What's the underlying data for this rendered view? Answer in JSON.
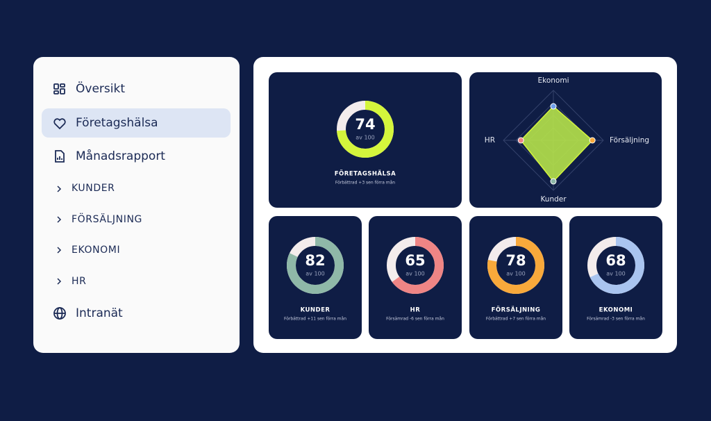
{
  "sidebar": {
    "items": [
      "Översikt",
      "Företagshälsa",
      "Månadsrapport",
      "KUNDER",
      "FÖRSÄLJNING",
      "EKONOMI",
      "HR",
      "Intranät"
    ],
    "active": 1
  },
  "cards": [
    {
      "title": "FÖRETAGSHÄLSA",
      "score": 74,
      "max": {
        "value": 100,
        "label": "av 100"
      },
      "note": "Förbättrad +3 sen förra mån",
      "color": "#d4f53c"
    },
    {
      "title": "KUNDER",
      "score": 82,
      "max": {
        "value": 100,
        "label": "av 100"
      },
      "note": "Förbättrad +11 sen förra mån",
      "color": "#8fb8a8"
    },
    {
      "title": "HR",
      "score": 65,
      "max": {
        "value": 100,
        "label": "av 100"
      },
      "note": "Försämrad -6 sen förra mån",
      "color": "#ee8585"
    },
    {
      "title": "FÖRSÄLJNING",
      "score": 78,
      "max": {
        "value": 100,
        "label": "av 100"
      },
      "note": "Förbättrad +7 sen förra mån",
      "color": "#f8a93b"
    },
    {
      "title": "EKONOMI",
      "score": 68,
      "max": {
        "value": 100,
        "label": "av 100"
      },
      "note": "Försämrad -3 sen förra mån",
      "color": "#a9c4ef"
    }
  ],
  "radar": {
    "axes": [
      "Ekonomi",
      "Försäljning",
      "Kunder",
      "HR"
    ],
    "values": [
      68,
      78,
      82,
      65
    ],
    "max": 100,
    "colors": [
      "#6fa0ea",
      "#f8a93b",
      "#8fb8a8",
      "#ee8585"
    ],
    "fill": "#b6e34a"
  }
}
